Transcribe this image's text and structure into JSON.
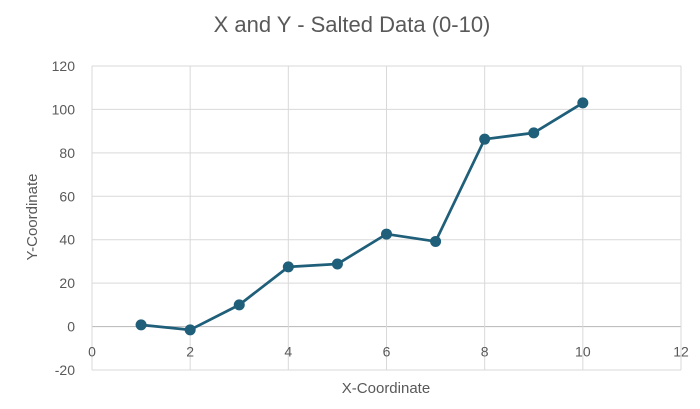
{
  "chart_data": {
    "type": "scatter",
    "title": "X and Y - Salted Data (0-10)",
    "xlabel": "X-Coordinate",
    "ylabel": "Y-Coordinate",
    "xlim": [
      0,
      12
    ],
    "ylim": [
      -20,
      120
    ],
    "x_ticks": [
      0,
      2,
      4,
      6,
      8,
      10,
      12
    ],
    "y_ticks": [
      -20,
      0,
      20,
      40,
      60,
      80,
      100,
      120
    ],
    "grid": true,
    "legend": "none",
    "series": [
      {
        "color": "#1f5f7a",
        "x": [
          1,
          2,
          3,
          4,
          5,
          6,
          7,
          8,
          9,
          10
        ],
        "y": [
          0.8,
          -1.5,
          10,
          27.5,
          28.8,
          42.6,
          39.2,
          86.3,
          89.2,
          103
        ]
      }
    ]
  }
}
